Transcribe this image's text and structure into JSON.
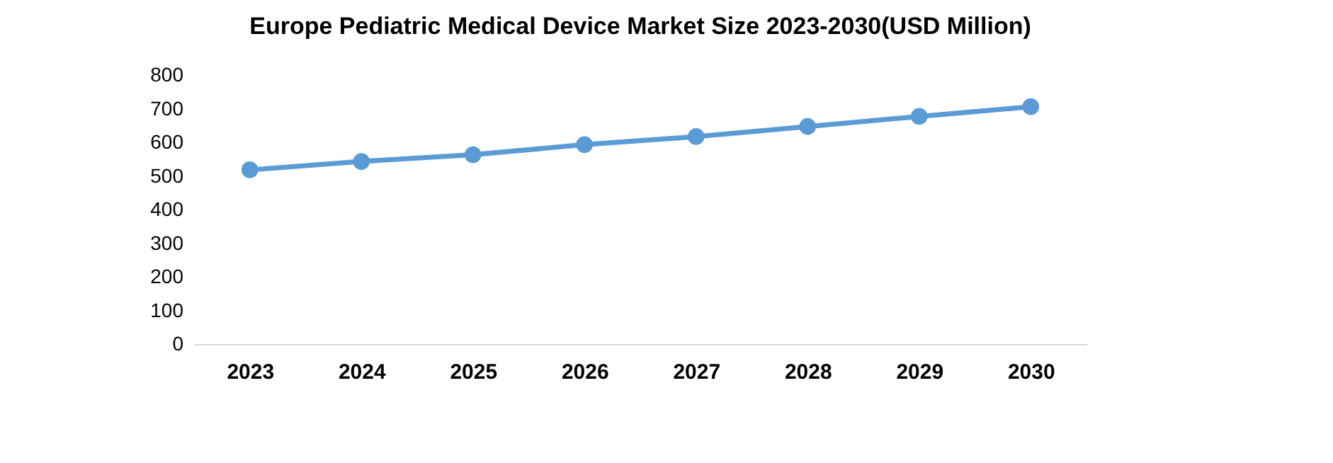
{
  "chart_data": {
    "type": "line",
    "title": "Europe Pediatric Medical Device Market Size 2023-2030(USD Million)",
    "categories": [
      "2023",
      "2024",
      "2025",
      "2026",
      "2027",
      "2028",
      "2029",
      "2030"
    ],
    "series": [
      {
        "color": "#5b9bd5",
        "values": [
          518,
          543,
          563,
          593,
          617,
          647,
          677,
          706
        ]
      }
    ],
    "ylim": [
      0,
      800
    ],
    "yticks": [
      0,
      100,
      200,
      300,
      400,
      500,
      600,
      700,
      800
    ],
    "grid": false,
    "marker": "circle",
    "line_style": "solid"
  }
}
